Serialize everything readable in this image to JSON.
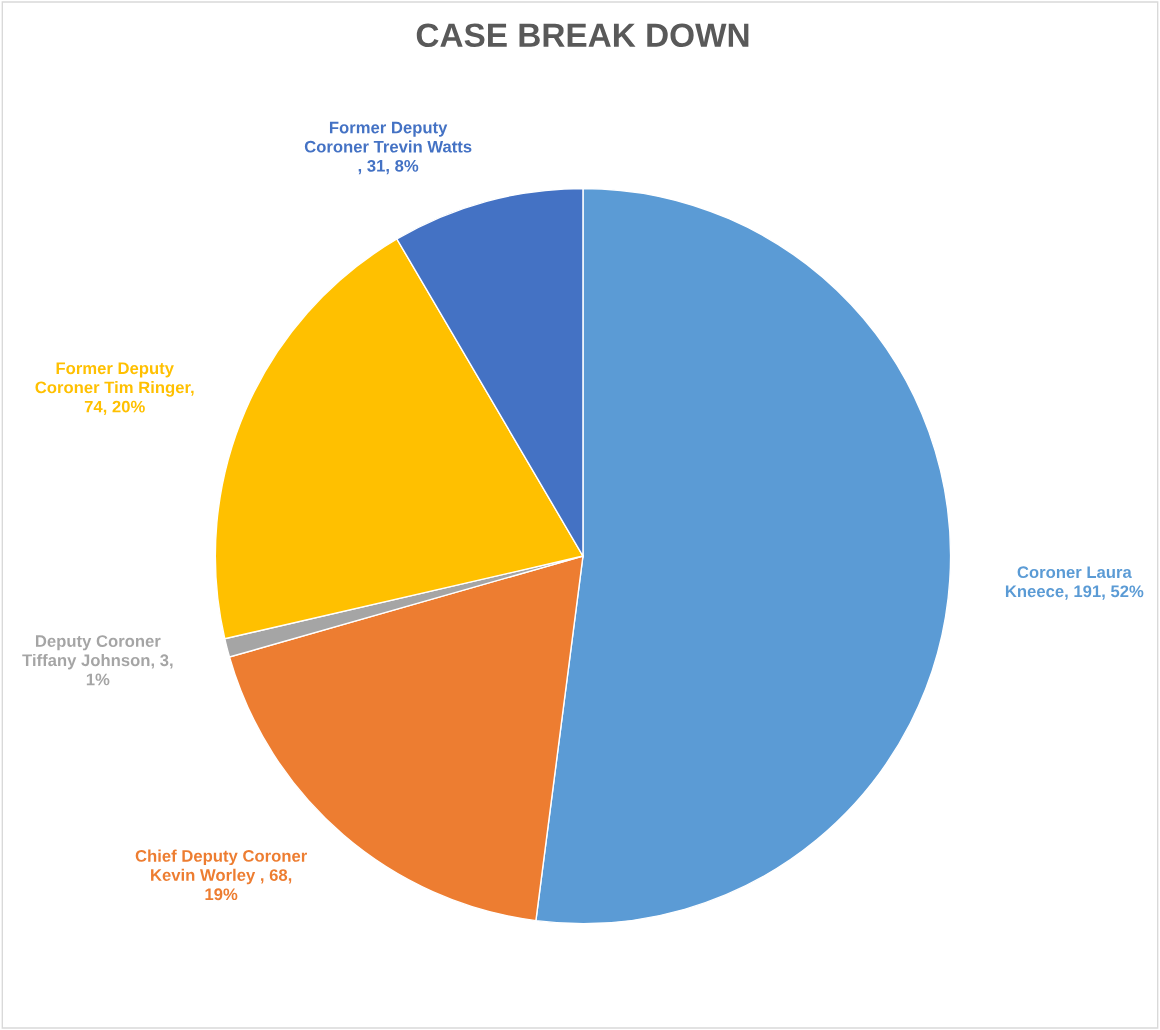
{
  "chart_data": {
    "type": "pie",
    "title": "CASE BREAK DOWN",
    "categories": [
      "Coroner Laura Kneece, 191, 52%",
      "Chief Deputy Coroner Kevin Worley , 68, 19%",
      "Deputy Coroner Tiffany Johnson, 3, 1%",
      "Former Deputy Coroner Tim Ringer, 74, 20%",
      "Former Deputy Coroner Trevin Watts , 31, 8%"
    ],
    "values": [
      191,
      68,
      3,
      74,
      31
    ],
    "colors": [
      "#5b9bd5",
      "#ed7d31",
      "#a5a5a5",
      "#ffc000",
      "#4472c4"
    ]
  }
}
